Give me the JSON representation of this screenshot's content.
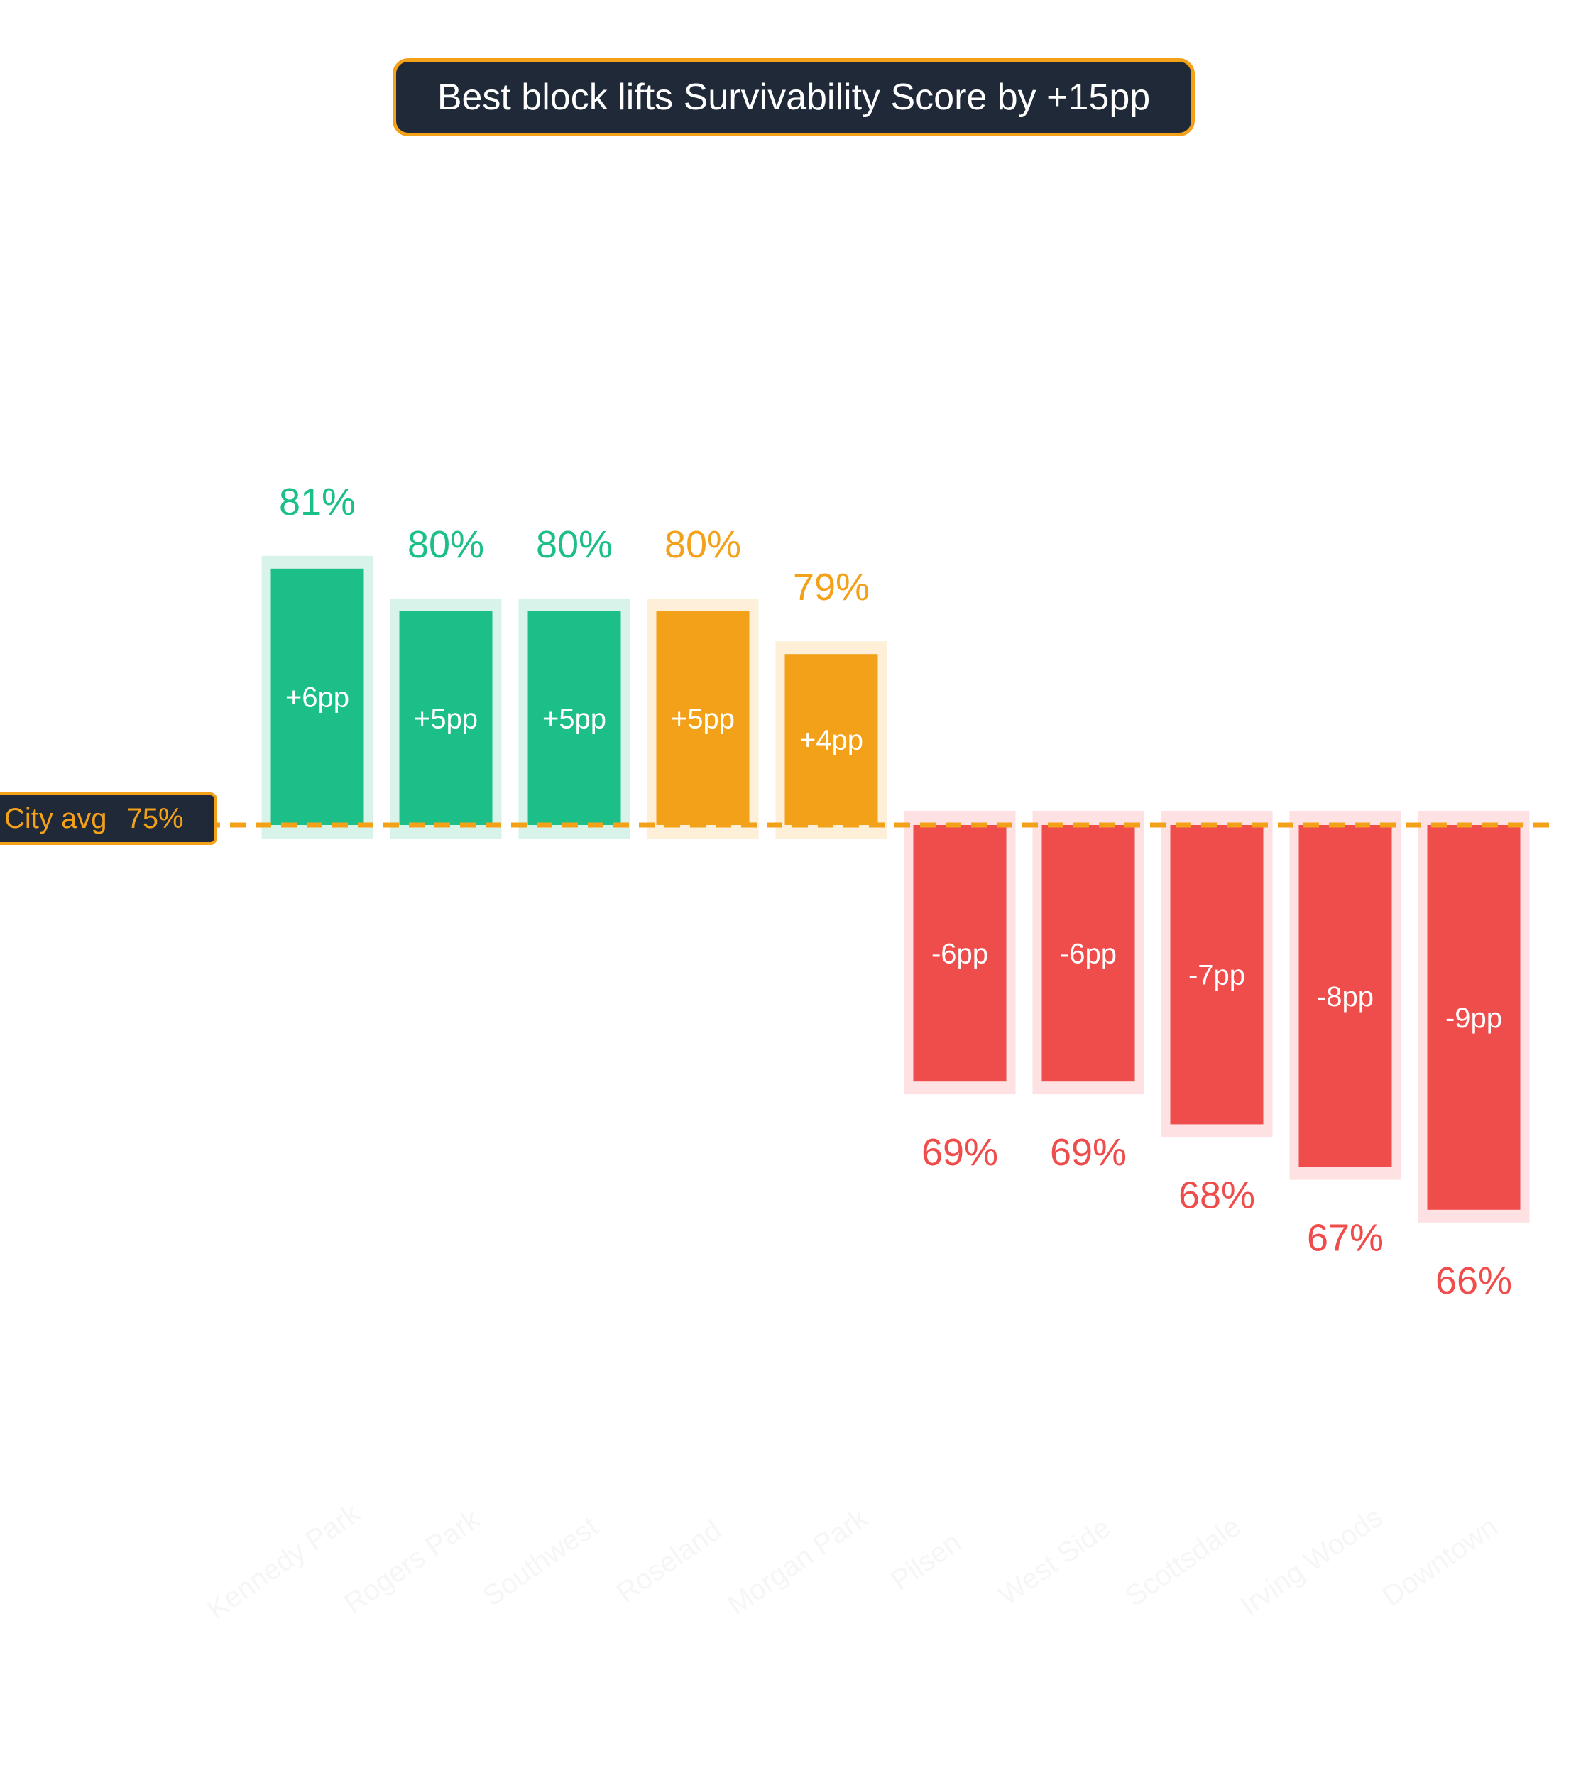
{
  "chart_data": {
    "type": "bar",
    "title": "Best block lifts Survivability Score by +15pp",
    "categories": [
      "Kennedy Park",
      "Rogers Park",
      "Southwest",
      "Roseland",
      "Morgan Park",
      "Pilsen",
      "West Side",
      "Scottsdale",
      "Irving Woods",
      "Downtown"
    ],
    "values": [
      81,
      80,
      80,
      80,
      79,
      69,
      69,
      68,
      67,
      66
    ],
    "value_labels": [
      "81%",
      "80%",
      "80%",
      "80%",
      "79%",
      "69%",
      "69%",
      "68%",
      "67%",
      "66%"
    ],
    "delta_labels": [
      "+6pp",
      "+5pp",
      "+5pp",
      "+5pp",
      "+4pp",
      "-6pp",
      "-6pp",
      "-7pp",
      "-8pp",
      "-9pp"
    ],
    "bar_colors": [
      "#1dbf89",
      "#1dbf89",
      "#1dbf89",
      "#f4a11a",
      "#f4a11a",
      "#ef4c4c",
      "#ef4c4c",
      "#ef4c4c",
      "#ef4c4c",
      "#ef4c4c"
    ],
    "halo_colors": [
      "#d8f4ea",
      "#d8f4ea",
      "#d8f4ea",
      "#fdefd8",
      "#fdefd8",
      "#fde1e3",
      "#fde1e3",
      "#fde1e3",
      "#fde1e3",
      "#fde1e3"
    ],
    "reference": {
      "label": "City avg",
      "value_label": "75%",
      "value": 75
    },
    "reference_color": "#f4a11a",
    "panel_bg": "#1f2937",
    "grid": false,
    "legend": "none"
  }
}
